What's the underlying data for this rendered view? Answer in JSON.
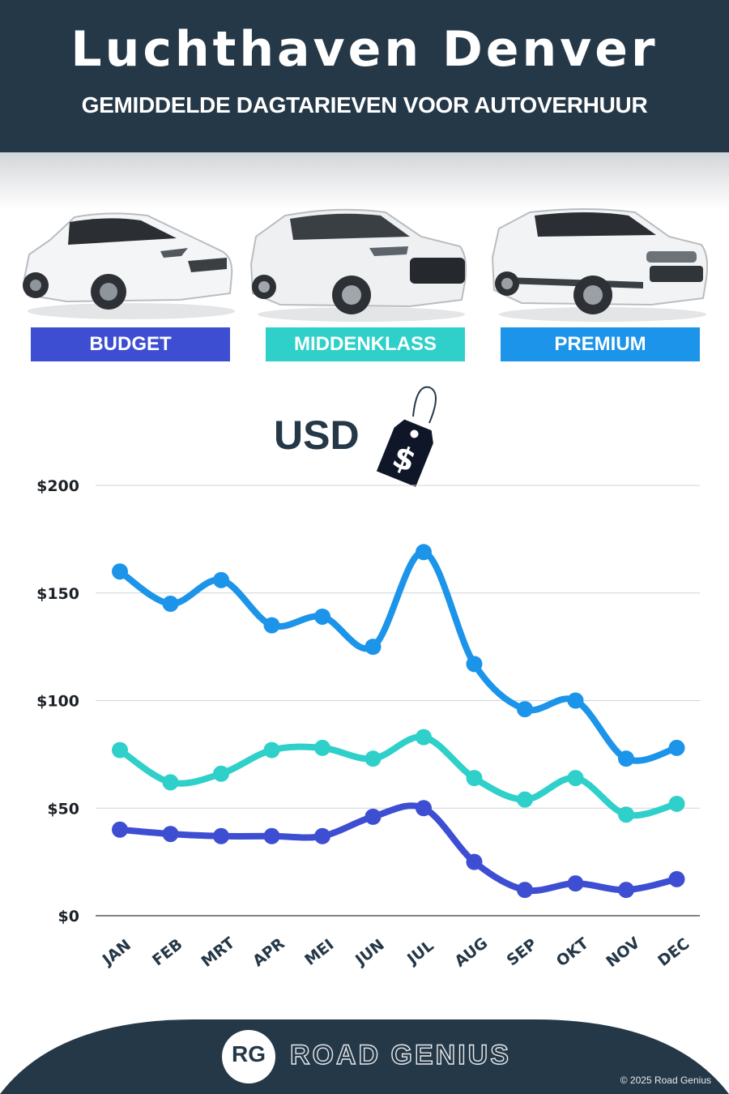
{
  "header": {
    "title": "Luchthaven Denver",
    "subtitle": "GEMIDDELDE DAGTARIEVEN VOOR AUTOVERHUUR"
  },
  "categories": [
    {
      "label": "BUDGET",
      "color": "#3d4ed2",
      "icon": "hatchback-car-image"
    },
    {
      "label": "MIDDENKLASS",
      "color": "#2ed0c9",
      "icon": "suv-car-image"
    },
    {
      "label": "PREMIUM",
      "color": "#1b94e9",
      "icon": "luxury-suv-car-image"
    }
  ],
  "currency": {
    "label": "USD",
    "icon": "dollar-price-tag-icon",
    "tag_symbol": "$"
  },
  "chart_data": {
    "type": "line",
    "categories": [
      "JAN",
      "FEB",
      "MRT",
      "APR",
      "MEI",
      "JUN",
      "JUL",
      "AUG",
      "SEP",
      "OKT",
      "NOV",
      "DEC"
    ],
    "series": [
      {
        "name": "BUDGET",
        "color": "#3d4ed2",
        "values": [
          40,
          38,
          37,
          37,
          37,
          46,
          50,
          25,
          12,
          15,
          12,
          17
        ]
      },
      {
        "name": "MIDDENKLASS",
        "color": "#2ed0c9",
        "values": [
          77,
          62,
          66,
          77,
          78,
          73,
          83,
          64,
          54,
          64,
          47,
          52
        ]
      },
      {
        "name": "PREMIUM",
        "color": "#1b94e9",
        "values": [
          160,
          145,
          156,
          135,
          139,
          125,
          169,
          117,
          96,
          100,
          73,
          78
        ]
      }
    ],
    "yticks": [
      "$0",
      "$50",
      "$100",
      "$150",
      "$200"
    ],
    "ylim": [
      0,
      200
    ],
    "grid": true,
    "legend": "top"
  },
  "footer": {
    "brand": "ROAD GENIUS",
    "logo": "RG",
    "copyright": "© 2025 Road Genius",
    "background": "#253848"
  }
}
